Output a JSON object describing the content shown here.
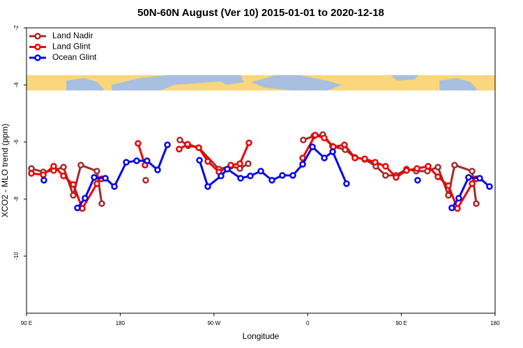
{
  "chart_data": {
    "type": "line",
    "title": "50N-60N August (Ver 10)   2015-01-01 to 2020-12-18",
    "x_label": "Longitude",
    "y_label": "XCO2 - MLO trend (ppm)",
    "xlim": [
      90,
      540
    ],
    "ylim": [
      -12,
      -2
    ],
    "xticks": [
      {
        "value": 90,
        "label": "90 E"
      },
      180,
      {
        "value": 270,
        "label": "90 W"
      },
      {
        "value": 360,
        "label": "0"
      },
      {
        "value": 450,
        "label": "90 E"
      },
      {
        "value": 540,
        "label": "180"
      }
    ],
    "yticks": [
      -2,
      -4,
      -6,
      -8,
      -10
    ],
    "legend": "top-left",
    "series": [
      {
        "name": "Land Nadir",
        "color": "#a52a2a",
        "x": [
          94.7,
          106.1,
          116.1,
          125.5,
          134.9,
          142.2,
          157.6,
          162.3,
          null,
          204.5,
          null,
          237.3,
          245.3,
          255.4,
          274.8,
          286.2,
          294.9,
          302.9,
          null,
          355.8,
          365.9,
          374.6,
          383.9,
          396.0,
          405.4,
          414.8,
          425.5,
          434.8,
          444.9,
          454.9,
          464.3,
          475.0,
          485.1,
          495.1,
          501.1,
          517.9,
          521.9
        ],
        "values": [
          -6.93,
          -7.05,
          -7.0,
          -6.88,
          -7.87,
          -6.81,
          -7.02,
          -8.16,
          null,
          -7.34,
          null,
          -5.93,
          -6.13,
          -6.2,
          -6.95,
          -6.85,
          -6.93,
          -6.76,
          null,
          -5.93,
          -5.79,
          -5.74,
          -6.15,
          -6.27,
          -6.54,
          -6.61,
          -6.85,
          -7.17,
          -7.17,
          -6.95,
          -7.02,
          -7.02,
          -6.88,
          -7.87,
          -6.81,
          -7.02,
          -8.16
        ]
      },
      {
        "name": "Land Glint",
        "color": "#ee0000",
        "x": [
          94.7,
          106.1,
          116.1,
          125.5,
          134.9,
          143.6,
          157.6,
          162.3,
          null,
          197.1,
          203.8,
          null,
          236.6,
          244.7,
          255.4,
          264.1,
          274.8,
          286.2,
          294.9,
          303.6,
          null,
          355.2,
          367.2,
          375.9,
          384.6,
          395.3,
          405.4,
          414.8,
          424.8,
          434.8,
          444.9,
          454.9,
          465.0,
          475.7,
          485.1,
          495.1,
          503.8,
          517.9,
          521.9
        ],
        "values": [
          -7.1,
          -7.15,
          -6.85,
          -7.19,
          -7.49,
          -8.33,
          -7.46,
          -7.29,
          null,
          -6.05,
          -6.81,
          null,
          -6.25,
          -6.08,
          -6.2,
          -6.68,
          -7.05,
          -6.81,
          -6.76,
          -6.03,
          null,
          -6.56,
          -5.76,
          -5.86,
          -6.17,
          -6.1,
          -6.56,
          -6.59,
          -6.71,
          -6.85,
          -7.24,
          -7.0,
          -6.93,
          -6.85,
          -7.22,
          -7.53,
          -8.33,
          -7.46,
          -7.29
        ]
      },
      {
        "name": "Ocean Glint",
        "color": "#0000ee",
        "x": [
          106.7,
          null,
          138.9,
          146.2,
          155.0,
          165.7,
          174.4,
          185.8,
          195.8,
          205.8,
          215.9,
          225.3,
          null,
          256.1,
          264.1,
          276.8,
          282.8,
          295.6,
          304.9,
          315.0,
          325.7,
          335.7,
          345.8,
          355.2,
          364.6,
          376.0,
          384.0,
          397.3,
          null,
          465.6,
          null,
          498.4,
          505.1,
          514.5,
          525.2,
          534.6
        ],
        "values": [
          -7.34,
          null,
          -8.31,
          -7.97,
          -7.24,
          -7.27,
          -7.56,
          -6.71,
          -6.66,
          -6.66,
          -6.98,
          -6.1,
          null,
          -6.64,
          -7.56,
          -7.19,
          -6.95,
          -7.27,
          -7.19,
          -7.02,
          -7.34,
          -7.17,
          -7.17,
          -6.78,
          -6.17,
          -6.56,
          -6.34,
          -7.46,
          null,
          -7.34,
          null,
          -8.31,
          -7.97,
          -7.24,
          -7.27,
          -7.56
        ]
      }
    ]
  }
}
